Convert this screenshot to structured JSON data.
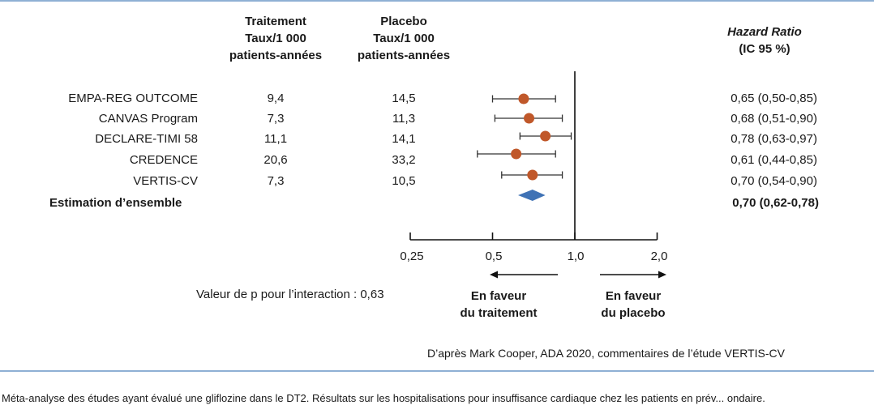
{
  "headers": {
    "treatment": [
      "Traitement",
      "Taux/1 000",
      "patients-années"
    ],
    "placebo": [
      "Placebo",
      "Taux/1 000",
      "patients-années"
    ],
    "hr": [
      "Hazard Ratio",
      "(IC 95 %)"
    ]
  },
  "axis": {
    "ticks": [
      {
        "value": 0.25,
        "label": "0,25"
      },
      {
        "value": 0.5,
        "label": "0,5"
      },
      {
        "value": 1.0,
        "label": "1,0"
      },
      {
        "value": 2.0,
        "label": "2,0"
      }
    ]
  },
  "interaction_label": "Valeur de p pour l’interaction : 0,63",
  "favour_treatment": [
    "En faveur",
    "du traitement"
  ],
  "favour_placebo": [
    "En faveur",
    "du placebo"
  ],
  "source": "D’après Mark Cooper, ADA 2020, commentaires de l’étude VERTIS-CV",
  "caption": "Méta-analyse des études ayant évalué une gliflozine dans le DT2. Résultats sur les hospitalisations pour insuffisance cardiaque chez les patients en prév... ondaire.",
  "colors": {
    "point": "#c0582a",
    "diamond": "#3f72b5",
    "rule": "#8fb0d4"
  },
  "chart_data": {
    "type": "forest",
    "x_scale": "log",
    "xlim": [
      0.25,
      2.0
    ],
    "reference_line": 1.0,
    "studies": [
      {
        "name": "EMPA-REG OUTCOME",
        "treatment": "9,4",
        "placebo": "14,5",
        "hr": 0.65,
        "lo": 0.5,
        "hi": 0.85,
        "label": "0,65 (0,50-0,85)"
      },
      {
        "name": "CANVAS Program",
        "treatment": "7,3",
        "placebo": "11,3",
        "hr": 0.68,
        "lo": 0.51,
        "hi": 0.9,
        "label": "0,68 (0,51-0,90)"
      },
      {
        "name": "DECLARE-TIMI 58",
        "treatment": "11,1",
        "placebo": "14,1",
        "hr": 0.78,
        "lo": 0.63,
        "hi": 0.97,
        "label": "0,78 (0,63-0,97)"
      },
      {
        "name": "CREDENCE",
        "treatment": "20,6",
        "placebo": "33,2",
        "hr": 0.61,
        "lo": 0.44,
        "hi": 0.85,
        "label": "0,61 (0,44-0,85)"
      },
      {
        "name": "VERTIS-CV",
        "treatment": "7,3",
        "placebo": "10,5",
        "hr": 0.7,
        "lo": 0.54,
        "hi": 0.9,
        "label": "0,70 (0,54-0,90)"
      }
    ],
    "overall": {
      "name": "Estimation d’ensemble",
      "hr": 0.7,
      "lo": 0.62,
      "hi": 0.78,
      "label": "0,70 (0,62-0,78)"
    }
  }
}
